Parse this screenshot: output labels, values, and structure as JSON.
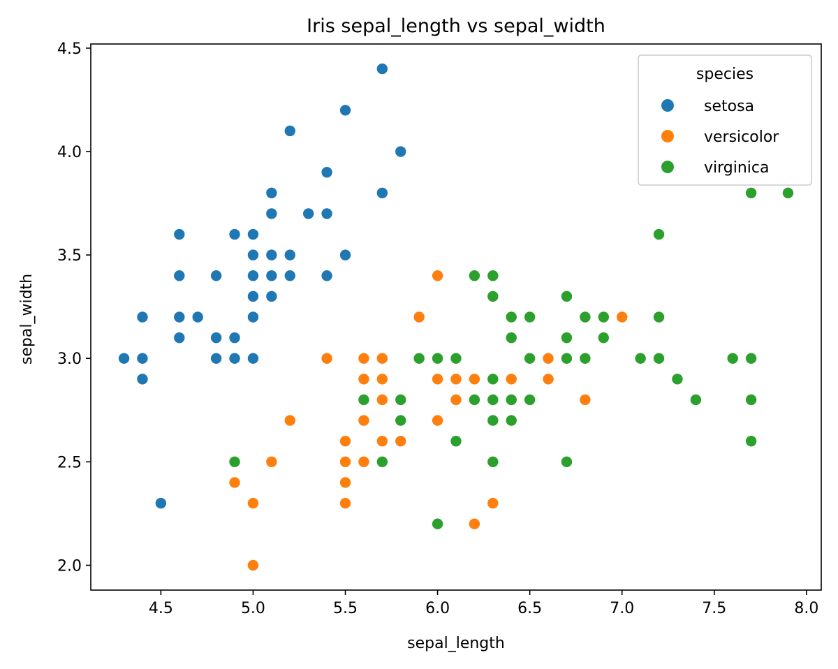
{
  "chart_data": {
    "type": "scatter",
    "title": "Iris sepal_length vs sepal_width",
    "xlabel": "sepal_length",
    "ylabel": "sepal_width",
    "xlim": [
      4.12,
      8.08
    ],
    "ylim": [
      1.88,
      4.52
    ],
    "xticks": [
      "4.5",
      "5.0",
      "5.5",
      "6.0",
      "6.5",
      "7.0",
      "7.5",
      "8.0"
    ],
    "yticks": [
      "2.0",
      "2.5",
      "3.0",
      "3.5",
      "4.0",
      "4.5"
    ],
    "grid": false,
    "legend": {
      "title": "species",
      "placement": "top-right"
    },
    "series": [
      {
        "name": "setosa",
        "color": "#1f77b4",
        "points": [
          [
            4.3,
            3.0
          ],
          [
            4.4,
            3.2
          ],
          [
            4.4,
            3.0
          ],
          [
            4.4,
            2.9
          ],
          [
            4.5,
            2.3
          ],
          [
            4.6,
            3.6
          ],
          [
            4.6,
            3.4
          ],
          [
            4.6,
            3.2
          ],
          [
            4.6,
            3.1
          ],
          [
            4.7,
            3.2
          ],
          [
            4.8,
            3.4
          ],
          [
            4.8,
            3.1
          ],
          [
            4.8,
            3.0
          ],
          [
            4.9,
            3.6
          ],
          [
            4.9,
            3.1
          ],
          [
            4.9,
            3.0
          ],
          [
            5.0,
            3.6
          ],
          [
            5.0,
            3.5
          ],
          [
            5.0,
            3.4
          ],
          [
            5.0,
            3.3
          ],
          [
            5.0,
            3.2
          ],
          [
            5.0,
            3.0
          ],
          [
            5.1,
            3.8
          ],
          [
            5.1,
            3.7
          ],
          [
            5.1,
            3.5
          ],
          [
            5.1,
            3.4
          ],
          [
            5.1,
            3.3
          ],
          [
            5.2,
            4.1
          ],
          [
            5.2,
            3.5
          ],
          [
            5.2,
            3.4
          ],
          [
            5.3,
            3.7
          ],
          [
            5.4,
            3.9
          ],
          [
            5.4,
            3.7
          ],
          [
            5.4,
            3.4
          ],
          [
            5.5,
            4.2
          ],
          [
            5.5,
            3.5
          ],
          [
            5.7,
            4.4
          ],
          [
            5.7,
            3.8
          ],
          [
            5.8,
            4.0
          ]
        ]
      },
      {
        "name": "versicolor",
        "color": "#ff7f0e",
        "points": [
          [
            4.9,
            2.4
          ],
          [
            5.0,
            2.3
          ],
          [
            5.0,
            2.0
          ],
          [
            5.1,
            2.5
          ],
          [
            5.2,
            2.7
          ],
          [
            5.4,
            3.0
          ],
          [
            5.5,
            2.6
          ],
          [
            5.5,
            2.5
          ],
          [
            5.5,
            2.4
          ],
          [
            5.5,
            2.3
          ],
          [
            5.6,
            3.0
          ],
          [
            5.6,
            2.9
          ],
          [
            5.6,
            2.7
          ],
          [
            5.6,
            2.5
          ],
          [
            5.7,
            3.0
          ],
          [
            5.7,
            2.9
          ],
          [
            5.7,
            2.8
          ],
          [
            5.7,
            2.6
          ],
          [
            5.8,
            2.6
          ],
          [
            5.9,
            3.2
          ],
          [
            6.0,
            3.4
          ],
          [
            6.0,
            2.9
          ],
          [
            6.0,
            2.7
          ],
          [
            6.1,
            2.9
          ],
          [
            6.1,
            2.8
          ],
          [
            6.2,
            2.9
          ],
          [
            6.2,
            2.2
          ],
          [
            6.3,
            2.3
          ],
          [
            6.4,
            2.9
          ],
          [
            6.5,
            2.8
          ],
          [
            6.6,
            3.0
          ],
          [
            6.6,
            2.9
          ],
          [
            6.8,
            2.8
          ],
          [
            7.0,
            3.2
          ]
        ]
      },
      {
        "name": "virginica",
        "color": "#2ca02c",
        "points": [
          [
            4.9,
            2.5
          ],
          [
            5.6,
            2.8
          ],
          [
            5.7,
            2.5
          ],
          [
            5.8,
            2.8
          ],
          [
            5.8,
            2.7
          ],
          [
            5.9,
            3.0
          ],
          [
            6.0,
            3.0
          ],
          [
            6.0,
            2.2
          ],
          [
            6.1,
            3.0
          ],
          [
            6.1,
            2.6
          ],
          [
            6.2,
            3.4
          ],
          [
            6.2,
            2.8
          ],
          [
            6.3,
            3.4
          ],
          [
            6.3,
            3.3
          ],
          [
            6.3,
            2.9
          ],
          [
            6.3,
            2.8
          ],
          [
            6.3,
            2.7
          ],
          [
            6.3,
            2.5
          ],
          [
            6.4,
            3.2
          ],
          [
            6.4,
            3.1
          ],
          [
            6.4,
            2.8
          ],
          [
            6.4,
            2.7
          ],
          [
            6.5,
            3.2
          ],
          [
            6.5,
            3.0
          ],
          [
            6.5,
            2.8
          ],
          [
            6.7,
            3.3
          ],
          [
            6.7,
            3.1
          ],
          [
            6.7,
            3.0
          ],
          [
            6.7,
            2.5
          ],
          [
            6.8,
            3.2
          ],
          [
            6.8,
            3.0
          ],
          [
            6.9,
            3.2
          ],
          [
            6.9,
            3.1
          ],
          [
            7.1,
            3.0
          ],
          [
            7.2,
            3.6
          ],
          [
            7.2,
            3.2
          ],
          [
            7.2,
            3.0
          ],
          [
            7.3,
            2.9
          ],
          [
            7.4,
            2.8
          ],
          [
            7.6,
            3.0
          ],
          [
            7.7,
            3.8
          ],
          [
            7.7,
            3.0
          ],
          [
            7.7,
            2.8
          ],
          [
            7.7,
            2.6
          ],
          [
            7.9,
            3.8
          ]
        ]
      }
    ]
  }
}
